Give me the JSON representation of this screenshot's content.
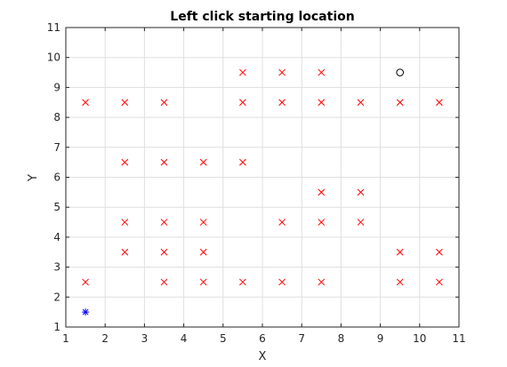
{
  "chart_data": {
    "type": "scatter",
    "title": "Left click starting location",
    "xlabel": "X",
    "ylabel": "Y",
    "xlim": [
      1,
      11
    ],
    "ylim": [
      1,
      11
    ],
    "xticks": [
      "1",
      "2",
      "3",
      "4",
      "5",
      "6",
      "7",
      "8",
      "9",
      "10",
      "11"
    ],
    "yticks": [
      "1",
      "2",
      "3",
      "4",
      "5",
      "6",
      "7",
      "8",
      "9",
      "10",
      "11"
    ],
    "grid": true,
    "series": [
      {
        "marker": "x",
        "color": "#ff0000",
        "points": [
          [
            5.5,
            9.5
          ],
          [
            6.5,
            9.5
          ],
          [
            7.5,
            9.5
          ],
          [
            1.5,
            8.5
          ],
          [
            2.5,
            8.5
          ],
          [
            3.5,
            8.5
          ],
          [
            5.5,
            8.5
          ],
          [
            6.5,
            8.5
          ],
          [
            7.5,
            8.5
          ],
          [
            8.5,
            8.5
          ],
          [
            9.5,
            8.5
          ],
          [
            10.5,
            8.5
          ],
          [
            2.5,
            6.5
          ],
          [
            3.5,
            6.5
          ],
          [
            4.5,
            6.5
          ],
          [
            5.5,
            6.5
          ],
          [
            7.5,
            5.5
          ],
          [
            8.5,
            5.5
          ],
          [
            2.5,
            4.5
          ],
          [
            3.5,
            4.5
          ],
          [
            4.5,
            4.5
          ],
          [
            6.5,
            4.5
          ],
          [
            7.5,
            4.5
          ],
          [
            8.5,
            4.5
          ],
          [
            2.5,
            3.5
          ],
          [
            3.5,
            3.5
          ],
          [
            4.5,
            3.5
          ],
          [
            9.5,
            3.5
          ],
          [
            10.5,
            3.5
          ],
          [
            1.5,
            2.5
          ],
          [
            3.5,
            2.5
          ],
          [
            4.5,
            2.5
          ],
          [
            5.5,
            2.5
          ],
          [
            6.5,
            2.5
          ],
          [
            7.5,
            2.5
          ],
          [
            9.5,
            2.5
          ],
          [
            10.5,
            2.5
          ]
        ]
      },
      {
        "marker": "o",
        "color": "#000000",
        "points": [
          [
            9.5,
            9.5
          ]
        ]
      },
      {
        "marker": "*",
        "color": "#0000ff",
        "points": [
          [
            1.5,
            1.5
          ]
        ]
      }
    ]
  }
}
